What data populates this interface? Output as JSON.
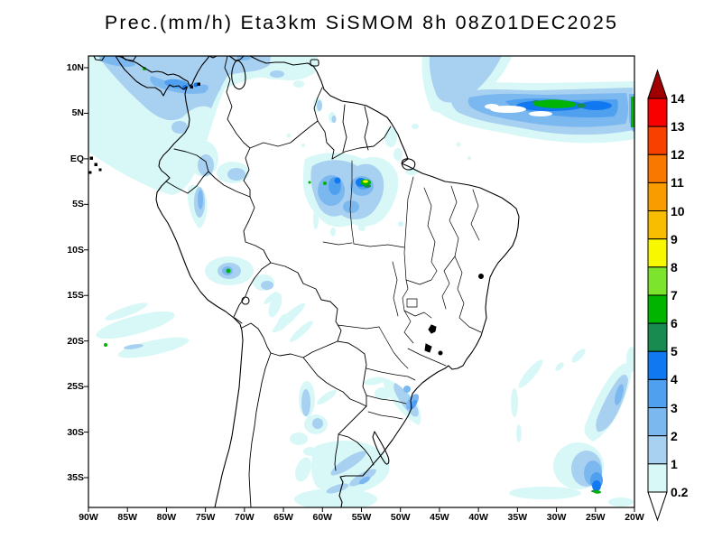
{
  "title": "Prec.(mm/h) Eta3km SiSMOM 8h 08Z01DEC2025",
  "axes": {
    "x_ticks": [
      "90W",
      "85W",
      "80W",
      "75W",
      "70W",
      "65W",
      "60W",
      "55W",
      "50W",
      "45W",
      "40W",
      "35W",
      "30W",
      "25W",
      "20W"
    ],
    "y_ticks": [
      "10N",
      "5N",
      "EQ",
      "5S",
      "10S",
      "15S",
      "20S",
      "25S",
      "30S",
      "35S"
    ]
  },
  "colorbar": {
    "tick_labels_top_to_bottom": [
      "14",
      "13",
      "12",
      "11",
      "10",
      "9",
      "8",
      "7",
      "6",
      "5",
      "4",
      "3",
      "2",
      "1",
      "0.2"
    ],
    "box_colors_top_to_bottom": [
      "#F80000",
      "#F84000",
      "#F87800",
      "#F89C00",
      "#F8BC00",
      "#F8F800",
      "#7CE42C",
      "#00B400",
      "#188C50",
      "#1078F0",
      "#50A0F0",
      "#7CB8F0",
      "#A8D0F0",
      "#D8F8F8"
    ],
    "over_color": "#A00000",
    "under_color": "#FFFFFF"
  },
  "palette": {
    "p02_1": "#D8F8F8",
    "p1_2": "#A8D0F0",
    "p2_3": "#7CB8F0",
    "p3_4": "#50A0F0",
    "p4_5": "#1078F0",
    "p5_6": "#188C50",
    "p6_7": "#00B400",
    "p7_8": "#7CE42C",
    "p8_9": "#F8F800",
    "over": "#A00000",
    "under": "#FFFFFF"
  },
  "map": {
    "line_color": "#000000",
    "background": "#FFFFFF",
    "region": "South America"
  }
}
